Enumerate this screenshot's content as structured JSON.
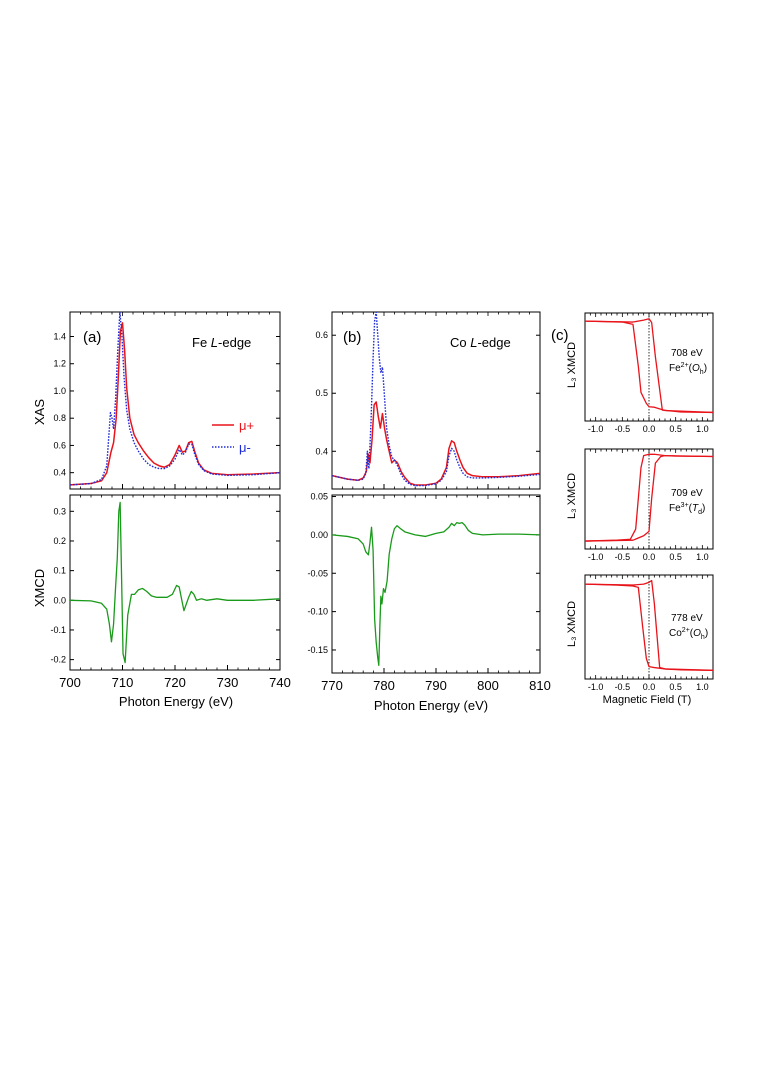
{
  "figure": {
    "panel_a_tag": "(a)",
    "panel_b_tag": "(b)",
    "panel_c_tag": "(c)",
    "xas_ylabel": "XAS",
    "xmcd_ylabel": "XMCD",
    "photon_xlabel": "Photon Energy (eV)",
    "field_xlabel": "Magnetic Field (T)",
    "l3_ylabel": "L₃ XMCD",
    "fe_edge_prefix": "Fe ",
    "co_edge_prefix": "Co ",
    "edge_italic": "L",
    "edge_suffix": "-edge",
    "legend_mu_plus": "μ+",
    "legend_mu_minus": "μ-",
    "c1_energy": "708 eV",
    "c1_site": "Fe2+(Oh)",
    "c2_energy": "709 eV",
    "c2_site": "Fe3+(Td)",
    "c3_energy": "778 eV",
    "c3_site": "Co2+(Oh)"
  },
  "colors": {
    "mu_plus": "#e8141b",
    "mu_minus": "#1f2bd6",
    "xmcd": "#1a9a1a",
    "loop": "#e8141b"
  },
  "chart_data": [
    {
      "id": "fe_xas",
      "type": "line",
      "ylabel": "XAS",
      "xlim": [
        700,
        740
      ],
      "ylim": [
        0.28,
        1.58
      ],
      "yticks": [
        "0.4",
        "0.6",
        "0.8",
        "1.0",
        "1.2",
        "1.4"
      ],
      "legend_position": "right",
      "series": [
        {
          "name": "μ+",
          "style": "solid",
          "x": [
            700,
            704,
            706,
            707,
            707.8,
            708.3,
            708.8,
            709.2,
            709.6,
            710.0,
            710.4,
            710.8,
            711.4,
            712.2,
            713,
            714,
            715,
            716,
            717,
            718,
            719,
            720,
            720.8,
            721.4,
            722.0,
            722.6,
            723.2,
            723.8,
            724.5,
            725.5,
            727,
            730,
            735,
            740
          ],
          "y": [
            0.31,
            0.32,
            0.34,
            0.4,
            0.55,
            0.62,
            0.8,
            1.1,
            1.44,
            1.5,
            1.3,
            1.02,
            0.8,
            0.68,
            0.62,
            0.56,
            0.51,
            0.47,
            0.45,
            0.44,
            0.46,
            0.53,
            0.6,
            0.55,
            0.56,
            0.62,
            0.63,
            0.55,
            0.47,
            0.42,
            0.395,
            0.385,
            0.39,
            0.4
          ]
        },
        {
          "name": "μ-",
          "style": "dotted",
          "x": [
            700,
            704,
            706,
            707,
            707.7,
            708.0,
            708.3,
            708.7,
            709.1,
            709.5,
            709.9,
            710.3,
            710.8,
            711.4,
            712.2,
            713,
            714,
            715,
            716,
            717,
            718,
            719,
            720,
            720.8,
            721.4,
            722.0,
            722.6,
            723.2,
            723.8,
            724.5,
            725.5,
            727,
            730,
            735,
            740
          ],
          "y": [
            0.31,
            0.32,
            0.35,
            0.45,
            0.84,
            0.8,
            0.72,
            0.95,
            1.3,
            1.58,
            1.4,
            1.1,
            0.86,
            0.72,
            0.62,
            0.56,
            0.5,
            0.46,
            0.44,
            0.43,
            0.43,
            0.45,
            0.5,
            0.57,
            0.53,
            0.55,
            0.61,
            0.61,
            0.53,
            0.46,
            0.415,
            0.39,
            0.38,
            0.385,
            0.4
          ]
        }
      ]
    },
    {
      "id": "fe_xmcd",
      "type": "line",
      "xlabel": "Photon Energy (eV)",
      "ylabel": "XMCD",
      "xlim": [
        700,
        740
      ],
      "ylim": [
        -0.235,
        0.355
      ],
      "xticks": [
        "700",
        "710",
        "720",
        "730",
        "740"
      ],
      "yticks": [
        "-0.2",
        "-0.1",
        "0.0",
        "0.1",
        "0.2",
        "0.3"
      ],
      "series": [
        {
          "x": [
            700,
            704,
            706,
            707,
            707.5,
            707.9,
            708.3,
            708.7,
            709.0,
            709.3,
            709.55,
            709.8,
            710.1,
            710.5,
            711.0,
            711.7,
            712.3,
            713,
            713.8,
            714.6,
            715.5,
            716.5,
            717.5,
            718.5,
            719.5,
            720.3,
            720.8,
            721.3,
            721.7,
            722.1,
            722.6,
            723.1,
            723.6,
            724.1,
            725,
            726,
            728,
            730,
            735,
            740
          ],
          "y": [
            0.0,
            -0.002,
            -0.01,
            -0.03,
            -0.08,
            -0.14,
            -0.08,
            0.05,
            0.14,
            0.3,
            0.33,
            0.1,
            -0.18,
            -0.21,
            -0.05,
            0.02,
            0.02,
            0.035,
            0.04,
            0.03,
            0.015,
            0.01,
            0.01,
            0.01,
            0.02,
            0.05,
            0.045,
            0.0,
            -0.035,
            -0.015,
            0.01,
            0.03,
            0.02,
            0.0,
            0.005,
            0.0,
            0.005,
            0.0,
            0.0,
            0.005
          ]
        }
      ]
    },
    {
      "id": "co_xas",
      "type": "line",
      "xlim": [
        770,
        810
      ],
      "ylim": [
        0.335,
        0.64
      ],
      "yticks": [
        "0.4",
        "0.5",
        "0.6"
      ],
      "series": [
        {
          "name": "μ+",
          "style": "solid",
          "x": [
            770,
            773,
            775,
            776,
            776.6,
            777.0,
            777.3,
            777.7,
            778.1,
            778.5,
            778.9,
            779.3,
            779.7,
            780.1,
            780.5,
            781.0,
            781.5,
            782.0,
            782.6,
            783.3,
            784,
            785,
            786,
            788,
            790,
            791,
            792,
            792.5,
            793.0,
            793.5,
            794.0,
            794.6,
            795.2,
            796,
            797,
            799,
            802,
            806,
            810
          ],
          "y": [
            0.358,
            0.352,
            0.35,
            0.354,
            0.365,
            0.395,
            0.38,
            0.42,
            0.48,
            0.485,
            0.46,
            0.44,
            0.465,
            0.44,
            0.42,
            0.4,
            0.38,
            0.385,
            0.38,
            0.365,
            0.355,
            0.345,
            0.342,
            0.342,
            0.345,
            0.352,
            0.372,
            0.405,
            0.418,
            0.415,
            0.4,
            0.385,
            0.372,
            0.362,
            0.358,
            0.356,
            0.356,
            0.358,
            0.362
          ]
        },
        {
          "name": "μ-",
          "style": "dotted",
          "x": [
            770,
            773,
            775,
            776,
            776.5,
            776.8,
            777.1,
            777.5,
            777.9,
            778.2,
            778.5,
            778.8,
            779.1,
            779.4,
            779.7,
            779.9,
            780.2,
            780.5,
            781.0,
            781.5,
            782.0,
            782.6,
            783.3,
            784,
            785,
            786,
            788,
            790,
            791,
            792,
            792.5,
            793.0,
            793.5,
            794.0,
            794.6,
            795.2,
            796,
            797,
            799,
            802,
            806,
            810
          ],
          "y": [
            0.358,
            0.352,
            0.35,
            0.352,
            0.362,
            0.4,
            0.37,
            0.45,
            0.56,
            0.625,
            0.64,
            0.6,
            0.56,
            0.535,
            0.545,
            0.52,
            0.48,
            0.44,
            0.41,
            0.39,
            0.385,
            0.375,
            0.36,
            0.35,
            0.343,
            0.341,
            0.341,
            0.344,
            0.35,
            0.365,
            0.392,
            0.405,
            0.4,
            0.385,
            0.372,
            0.362,
            0.356,
            0.354,
            0.354,
            0.355,
            0.357,
            0.36
          ]
        }
      ]
    },
    {
      "id": "co_xmcd",
      "type": "line",
      "xlabel": "Photon Energy (eV)",
      "xlim": [
        770,
        810
      ],
      "ylim": [
        -0.18,
        0.052
      ],
      "xticks": [
        "770",
        "780",
        "790",
        "800",
        "810"
      ],
      "yticks": [
        "0.05",
        "0.00",
        "-0.05",
        "-0.10",
        "-0.15"
      ],
      "series": [
        {
          "x": [
            770,
            773,
            775,
            776,
            776.5,
            777.0,
            777.3,
            777.6,
            777.9,
            778.2,
            778.5,
            778.8,
            779.0,
            779.2,
            779.4,
            779.6,
            779.9,
            780.2,
            780.6,
            781.0,
            781.5,
            782.0,
            782.5,
            783.2,
            784,
            786,
            788,
            790,
            791.5,
            792.5,
            793.0,
            793.5,
            794.0,
            794.5,
            795.0,
            795.5,
            796.2,
            797,
            799,
            802,
            806,
            810
          ],
          "y": [
            0.0,
            -0.002,
            -0.005,
            -0.012,
            -0.022,
            -0.026,
            -0.01,
            0.01,
            -0.02,
            -0.11,
            -0.14,
            -0.16,
            -0.17,
            -0.12,
            -0.08,
            -0.09,
            -0.07,
            -0.075,
            -0.06,
            -0.025,
            -0.005,
            0.008,
            0.012,
            0.008,
            0.004,
            0.0,
            -0.002,
            0.002,
            0.004,
            0.01,
            0.015,
            0.012,
            0.016,
            0.015,
            0.016,
            0.013,
            0.006,
            0.002,
            0.0,
            0.001,
            0.001,
            0.0
          ]
        }
      ]
    },
    {
      "id": "loop_708",
      "type": "line",
      "xlim": [
        -1.2,
        1.2
      ],
      "ylim": [
        -1.15,
        1.12
      ],
      "xticks": [
        "-1.0",
        "-0.5",
        "0.0",
        "0.5",
        "1.0"
      ],
      "series": [
        {
          "x": [
            -1.2,
            -0.3,
            -0.1,
            0.0,
            0.05,
            0.12,
            0.25,
            0.6,
            1.2
          ],
          "y": [
            0.95,
            0.93,
            0.97,
            1.0,
            0.92,
            0.2,
            -0.92,
            -0.96,
            -0.97
          ]
        },
        {
          "x": [
            1.2,
            0.3,
            0.1,
            0.0,
            -0.05,
            -0.15,
            -0.2,
            -0.3,
            -0.5,
            -1.2
          ],
          "y": [
            -0.97,
            -0.93,
            -0.86,
            -0.85,
            -0.78,
            -0.55,
            0.0,
            0.88,
            0.93,
            0.95
          ]
        }
      ]
    },
    {
      "id": "loop_709",
      "type": "line",
      "xlim": [
        -1.2,
        1.2
      ],
      "ylim": [
        -1.15,
        1.12
      ],
      "xticks": [
        "-1.0",
        "-0.5",
        "0.0",
        "0.5",
        "1.0"
      ],
      "series": [
        {
          "x": [
            -1.2,
            -0.3,
            -0.1,
            0.0,
            0.05,
            0.12,
            0.22,
            0.3,
            0.5,
            1.2
          ],
          "y": [
            -0.97,
            -0.95,
            -0.85,
            -0.75,
            0.0,
            0.8,
            0.95,
            0.97,
            0.96,
            0.95
          ]
        },
        {
          "x": [
            1.2,
            0.3,
            0.1,
            0.0,
            -0.1,
            -0.15,
            -0.25,
            -0.35,
            -0.6,
            -1.2
          ],
          "y": [
            0.95,
            0.97,
            1.0,
            1.0,
            0.97,
            0.7,
            -0.7,
            -0.93,
            -0.95,
            -0.97
          ]
        }
      ]
    },
    {
      "id": "loop_778",
      "type": "line",
      "xlim": [
        -1.2,
        1.2
      ],
      "ylim": [
        -1.15,
        1.12
      ],
      "xticks": [
        "-1.0",
        "-0.5",
        "0.0",
        "0.5",
        "1.0"
      ],
      "series": [
        {
          "x": [
            -1.2,
            -0.3,
            -0.1,
            0.0,
            0.05,
            0.1,
            0.2,
            0.3,
            0.6,
            1.2
          ],
          "y": [
            0.92,
            0.9,
            0.92,
            0.96,
            1.0,
            0.5,
            -0.9,
            -0.93,
            -0.95,
            -0.96
          ]
        },
        {
          "x": [
            1.2,
            0.3,
            0.1,
            0.0,
            -0.05,
            -0.12,
            -0.2,
            -0.3,
            -0.6,
            -1.2
          ],
          "y": [
            -0.96,
            -0.93,
            -0.9,
            -0.88,
            -0.7,
            0.0,
            0.85,
            0.88,
            0.9,
            0.92
          ]
        }
      ]
    }
  ]
}
